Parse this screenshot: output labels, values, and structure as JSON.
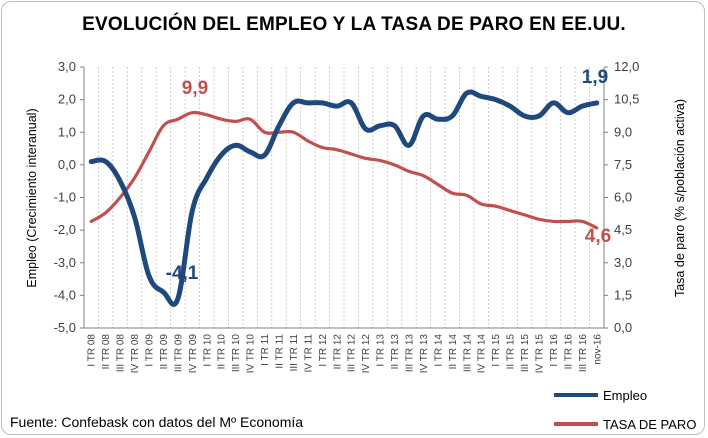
{
  "title": "EVOLUCIÓN DEL EMPLEO Y LA TASA DE PARO EN EE.UU.",
  "source": "Fuente: Confebask con datos del Mº Economía",
  "colors": {
    "empleo": "#1f497d",
    "paro": "#c0504d",
    "grid": "#bfbfbf",
    "axis": "#808080"
  },
  "chart_data": {
    "type": "line",
    "title": "EVOLUCIÓN DEL EMPLEO Y LA TASA DE PARO EN EE.UU.",
    "ylabel": "Empleo (Crecimiento interanual)",
    "y2label": "Tasa de paro (% s/población activa)",
    "ylim": [
      -5,
      3
    ],
    "y2lim": [
      0,
      12
    ],
    "yticks": [
      "3,0",
      "2,0",
      "1,0",
      "0,0",
      "-1,0",
      "-2,0",
      "-3,0",
      "-4,0",
      "-5,0"
    ],
    "y2ticks": [
      "12,0",
      "10,5",
      "9,0",
      "7,5",
      "6,0",
      "4,5",
      "3,0",
      "1,5",
      "0,0"
    ],
    "grid": "vertical",
    "legend_position": "bottom-right",
    "x": [
      "I TR 08",
      "II TR 08",
      "III TR 08",
      "IV TR 08",
      "I TR 09",
      "II TR 09",
      "III TR 09",
      "IV TR 09",
      "I TR 10",
      "II TR 10",
      "III TR 10",
      "IV TR 10",
      "I TR 11",
      "II TR 11",
      "III TR 11",
      "IV TR 11",
      "I TR 12",
      "II TR 12",
      "III TR 12",
      "IV TR 12",
      "I TR 13",
      "II TR 13",
      "III TR 13",
      "IV TR 13",
      "I TR 14",
      "II TR 14",
      "III TR 14",
      "IV TR 14",
      "I TR 15",
      "II TR 15",
      "III TR 15",
      "IV TR 15",
      "I TR 16",
      "II TR 16",
      "III TR 16",
      "nov-16"
    ],
    "series": [
      {
        "name": "Empleo",
        "axis": "left",
        "color": "#1f497d",
        "values": [
          0.1,
          0.1,
          -0.5,
          -1.6,
          -3.4,
          -3.9,
          -4.1,
          -1.4,
          -0.4,
          0.3,
          0.6,
          0.4,
          0.3,
          1.2,
          1.9,
          1.9,
          1.9,
          1.8,
          1.9,
          1.1,
          1.2,
          1.2,
          0.6,
          1.5,
          1.4,
          1.5,
          2.2,
          2.1,
          2.0,
          1.8,
          1.5,
          1.5,
          1.9,
          1.6,
          1.8,
          1.9
        ]
      },
      {
        "name": "TASA DE PARO",
        "axis": "right",
        "color": "#c0504d",
        "values": [
          4.9,
          5.3,
          6.0,
          6.9,
          8.1,
          9.3,
          9.6,
          9.9,
          9.8,
          9.6,
          9.5,
          9.6,
          9.0,
          9.0,
          9.0,
          8.6,
          8.3,
          8.2,
          8.0,
          7.8,
          7.7,
          7.5,
          7.2,
          7.0,
          6.6,
          6.2,
          6.1,
          5.7,
          5.6,
          5.4,
          5.2,
          5.0,
          4.9,
          4.9,
          4.9,
          4.6
        ]
      }
    ],
    "annotations": [
      {
        "text": "9,9",
        "series": "TASA DE PARO"
      },
      {
        "text": "-4,1",
        "series": "Empleo"
      },
      {
        "text": "1,9",
        "series": "Empleo"
      },
      {
        "text": "4,6",
        "series": "TASA DE PARO"
      }
    ]
  }
}
